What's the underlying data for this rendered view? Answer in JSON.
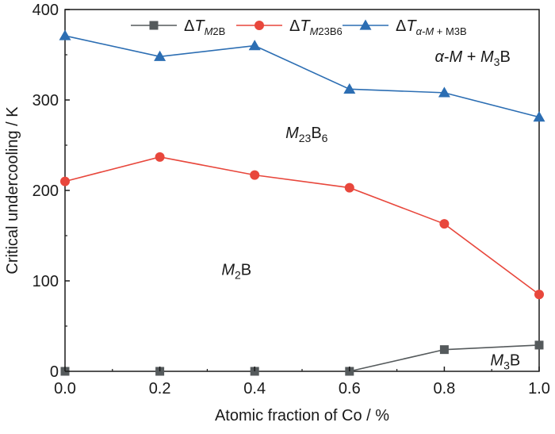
{
  "chart_data": {
    "type": "line",
    "xlabel": "Atomic fraction of Co / %",
    "ylabel": "Critical undercooling / K",
    "xlim": [
      0.0,
      1.0
    ],
    "ylim": [
      0,
      400
    ],
    "xticks": [
      "0.0",
      "0.2",
      "0.4",
      "0.6",
      "0.8",
      "1.0"
    ],
    "yticks": [
      "0",
      "100",
      "200",
      "300",
      "400"
    ],
    "x": [
      0.0,
      0.2,
      0.4,
      0.6,
      0.8,
      1.0
    ],
    "legend_position": "top",
    "grid": false,
    "series": [
      {
        "name": "ΔT_M2B",
        "legend": {
          "base": "ΔT",
          "sub_italic": "M",
          "sub_plain": "2B"
        },
        "color": "#555a5c",
        "marker": "square",
        "values": [
          0,
          0,
          0,
          0,
          24,
          29
        ],
        "line_from_index": 3
      },
      {
        "name": "ΔT_M23B6",
        "legend": {
          "base": "ΔT",
          "sub_italic": "M",
          "sub_plain": "23B6"
        },
        "color": "#e8473c",
        "marker": "circle",
        "values": [
          210,
          237,
          217,
          203,
          163,
          85
        ],
        "line_from_index": 0
      },
      {
        "name": "ΔT_α-M + M3B",
        "legend": {
          "base": "ΔT",
          "sub_italic": "α-M",
          "sub_plain": " + M3B"
        },
        "color": "#2c6eb3",
        "marker": "triangle",
        "values": [
          371,
          348,
          360,
          312,
          308,
          281
        ],
        "line_from_index": 0
      }
    ],
    "annotations": [
      {
        "text": "α-M + M3B",
        "at": [
          0.78,
          335
        ]
      },
      {
        "text": "M23B6",
        "at": [
          0.47,
          270
        ]
      },
      {
        "text": "M2B",
        "at": [
          0.35,
          110
        ]
      },
      {
        "text": "M3B",
        "at": [
          0.95,
          10
        ]
      }
    ]
  }
}
